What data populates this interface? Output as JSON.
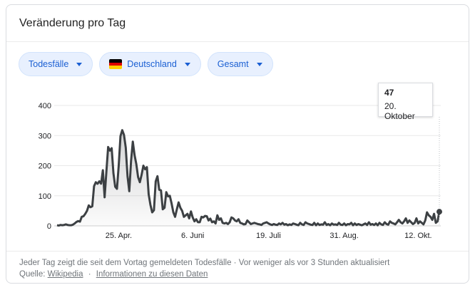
{
  "header": {
    "title": "Veränderung pro Tag"
  },
  "filters": [
    {
      "label": "Todesfälle"
    },
    {
      "label": "Deutschland",
      "flag": [
        "#000000",
        "#dd0000",
        "#ffce00"
      ]
    },
    {
      "label": "Gesamt"
    }
  ],
  "tooltip": {
    "value": "47",
    "date": "20. Oktober"
  },
  "footer": {
    "description": "Jeder Tag zeigt die seit dem Vortag gemeldeten Todesfälle · Vor weniger als vor 3 Stunden aktualisiert",
    "source_prefix": "Quelle:",
    "source_link": "Wikipedia",
    "info_link": "Informationen zu diesen Daten"
  },
  "colors": {
    "line": "#3c4043",
    "grid": "#e8e8e8",
    "accent": "#1a5fd3"
  },
  "chart_data": {
    "type": "area",
    "ylim": [
      0,
      400
    ],
    "yticks": [
      0,
      100,
      200,
      300,
      400
    ],
    "xticks": [
      {
        "day": 35,
        "label": "25. Apr."
      },
      {
        "day": 77,
        "label": "6. Juni"
      },
      {
        "day": 120,
        "label": "19. Juli"
      },
      {
        "day": 163,
        "label": "31. Aug."
      },
      {
        "day": 205,
        "label": "12. Okt."
      }
    ],
    "x_start": "21. März",
    "x_end": "20. Oktober",
    "values": [
      2,
      1,
      3,
      2,
      3,
      5,
      3,
      2,
      2,
      4,
      8,
      13,
      16,
      14,
      30,
      32,
      40,
      50,
      68,
      62,
      65,
      132,
      145,
      140,
      148,
      140,
      185,
      95,
      180,
      262,
      250,
      258,
      175,
      130,
      123,
      200,
      298,
      318,
      302,
      260,
      165,
      115,
      215,
      280,
      235,
      205,
      162,
      145,
      170,
      200,
      188,
      195,
      105,
      70,
      45,
      52,
      148,
      165,
      120,
      118,
      55,
      60,
      112,
      98,
      100,
      75,
      45,
      30,
      55,
      78,
      60,
      50,
      30,
      35,
      40,
      25,
      48,
      28,
      15,
      22,
      12,
      12,
      30,
      28,
      33,
      32,
      18,
      24,
      12,
      15,
      8,
      35,
      20,
      25,
      10,
      8,
      10,
      6,
      12,
      28,
      25,
      18,
      15,
      22,
      10,
      8,
      5,
      6,
      18,
      12,
      6,
      8,
      10,
      8,
      6,
      5,
      3,
      8,
      10,
      12,
      8,
      5,
      3,
      6,
      4,
      3,
      8,
      5,
      10,
      4,
      6,
      2,
      5,
      3,
      8,
      6,
      4,
      2,
      10,
      5,
      3,
      12,
      8,
      6,
      4,
      3,
      10,
      2,
      8,
      3,
      5,
      4,
      12,
      3,
      6,
      2,
      8,
      4,
      5,
      3,
      10,
      4,
      3,
      8,
      2,
      6,
      5,
      10,
      2,
      8,
      3,
      6,
      4,
      2,
      5,
      8,
      3,
      12,
      4,
      6,
      3,
      8,
      2,
      10,
      5,
      3,
      12,
      6,
      4,
      15,
      10,
      8,
      5,
      12,
      20,
      12,
      8,
      15,
      25,
      10,
      18,
      12,
      6,
      10,
      25,
      8,
      15,
      10,
      5,
      18,
      45,
      35,
      30,
      20,
      40,
      10,
      15,
      47
    ]
  }
}
